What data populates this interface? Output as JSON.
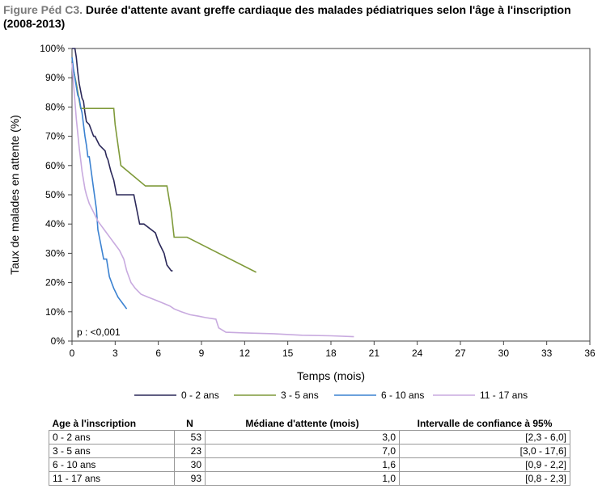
{
  "title": {
    "lead": "Figure Péd C3.",
    "text": "Durée d'attente avant greffe cardiaque des malades pédiatriques selon l'âge à l'inscription (2008-2013)"
  },
  "chart_data": {
    "type": "line",
    "title": "Durée d'attente avant greffe cardiaque des malades pédiatriques selon l'âge à l'inscription (2008-2013)",
    "xlabel": "Temps (mois)",
    "ylabel": "Taux de malades en attente (%)",
    "xlim": [
      0,
      36
    ],
    "ylim": [
      0,
      100
    ],
    "xticks": [
      0,
      3,
      6,
      9,
      12,
      15,
      18,
      21,
      24,
      27,
      30,
      33,
      36
    ],
    "xtick_labels": [
      "0",
      "3",
      "6",
      "9",
      "12",
      "15",
      "18",
      "21",
      "24",
      "27",
      "30",
      "33",
      "36"
    ],
    "yticks": [
      0,
      10,
      20,
      30,
      40,
      50,
      60,
      70,
      80,
      90,
      100
    ],
    "ytick_labels": [
      "0%",
      "10%",
      "20%",
      "30%",
      "40%",
      "50%",
      "60%",
      "70%",
      "80%",
      "90%",
      "100%"
    ],
    "annotation": "p : <0,001",
    "legend_position": "bottom",
    "series": [
      {
        "name": "0 - 2 ans",
        "color": "#2b2859",
        "x": [
          0,
          0.1,
          0.2,
          0.3,
          0.4,
          0.5,
          0.7,
          0.8,
          0.9,
          1.0,
          1.2,
          1.5,
          1.6,
          1.9,
          2.1,
          2.3,
          2.4,
          2.5,
          2.6,
          2.7,
          2.9,
          3.1,
          3.3,
          3.6,
          4.3,
          4.5,
          4.7,
          5.0,
          5.8,
          6.0,
          6.4,
          6.6,
          6.9,
          7.0
        ],
        "y": [
          100,
          100,
          100,
          97,
          92,
          88,
          83,
          82,
          78,
          75,
          74,
          70,
          70,
          67,
          66,
          65,
          63,
          62,
          60,
          58,
          55,
          50,
          50,
          50,
          50,
          45,
          40,
          40,
          37,
          34,
          30,
          26,
          24,
          24
        ]
      },
      {
        "name": "3 - 5 ans",
        "color": "#7f9a3a",
        "x": [
          0,
          0.3,
          0.6,
          1.0,
          2.0,
          2.9,
          3.0,
          3.4,
          5.1,
          6.6,
          6.9,
          7.1,
          8.0,
          12.8
        ],
        "y": [
          95,
          88,
          79.5,
          79.5,
          79.5,
          79.5,
          74,
          60,
          53,
          53,
          44,
          35.5,
          35.5,
          23.5
        ]
      },
      {
        "name": "6 - 10 ans",
        "color": "#3b82d1",
        "x": [
          0,
          0.1,
          0.2,
          0.3,
          0.4,
          0.5,
          0.6,
          0.7,
          0.8,
          0.9,
          1.0,
          1.1,
          1.2,
          1.5,
          1.7,
          1.8,
          2.0,
          2.2,
          2.4,
          2.6,
          2.9,
          3.2,
          3.5,
          3.8
        ],
        "y": [
          97,
          93,
          90,
          87,
          84,
          83,
          80,
          78,
          74,
          70,
          67,
          63,
          63,
          52,
          45,
          38,
          33,
          28,
          28,
          22,
          18,
          15,
          13,
          11
        ]
      },
      {
        "name": "11 - 17 ans",
        "color": "#c8aadf",
        "x": [
          0,
          0.1,
          0.2,
          0.3,
          0.4,
          0.5,
          0.6,
          0.7,
          0.8,
          0.9,
          1.0,
          1.2,
          1.5,
          1.8,
          2.1,
          2.4,
          2.7,
          3.0,
          3.3,
          3.6,
          3.8,
          4.1,
          4.4,
          4.8,
          5.3,
          5.8,
          6.3,
          6.8,
          7.1,
          7.6,
          8.2,
          8.8,
          9.3,
          10.0,
          10.2,
          10.7,
          12.0,
          14.0,
          16.0,
          18.0,
          19.6
        ],
        "y": [
          95,
          88,
          82,
          76,
          71,
          66,
          62,
          58,
          55,
          52,
          50,
          47,
          44,
          41,
          39,
          37,
          35,
          33,
          31,
          28,
          24,
          20,
          18,
          16,
          15,
          14,
          13,
          12,
          11,
          10,
          9,
          8.5,
          8,
          7.5,
          4.5,
          3,
          2.8,
          2.5,
          2,
          1.8,
          1.5
        ]
      }
    ]
  },
  "table": {
    "headers": [
      "Age à l'inscription",
      "N",
      "Médiane d'attente (mois)",
      "Intervalle de confiance à 95%"
    ],
    "rows": [
      [
        "0 - 2 ans",
        "53",
        "3,0",
        "[2,3 - 6,0]"
      ],
      [
        "3 - 5 ans",
        "23",
        "7,0",
        "[3,0 - 17,6]"
      ],
      [
        "6 - 10 ans",
        "30",
        "1,6",
        "[0,9 - 2,2]"
      ],
      [
        "11 - 17 ans",
        "93",
        "1,0",
        "[0,8 - 2,3]"
      ]
    ]
  }
}
